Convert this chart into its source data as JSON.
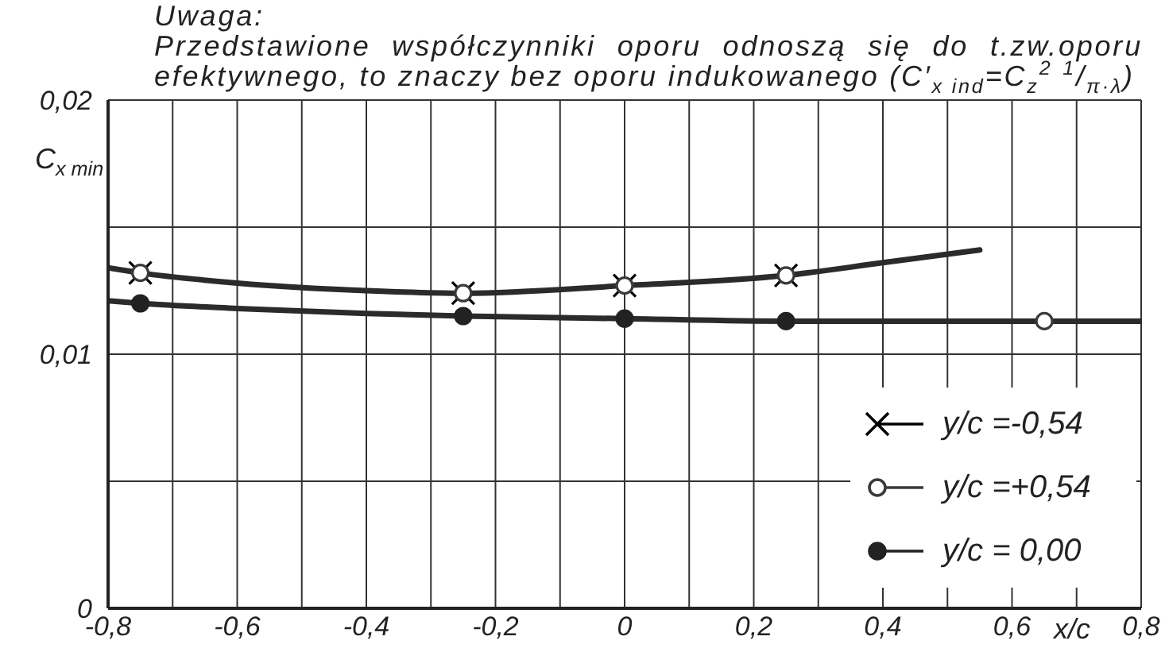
{
  "chart_data": {
    "type": "scatter",
    "annotations": [
      "Uwaga:",
      "Przedstawione współczynniki oporu odnoszą się do t.zw.oporu efektywnego, to znaczy bez oporu indukowanego (C′$_{x ind}$=C$_{z}$$^{2}$ $^{1}$/$_{π·λ}$)"
    ],
    "xlabel": "x/c",
    "ylabel": "C$_{x min}$",
    "xlim": [
      -0.8,
      0.8
    ],
    "ylim": [
      0,
      0.02
    ],
    "xticks": [
      {
        "value": -0.8,
        "label": "-0,8"
      },
      {
        "value": -0.7,
        "label": null
      },
      {
        "value": -0.6,
        "label": "-0,6"
      },
      {
        "value": -0.5,
        "label": null
      },
      {
        "value": -0.4,
        "label": "-0,4"
      },
      {
        "value": -0.3,
        "label": null
      },
      {
        "value": -0.2,
        "label": "-0,2"
      },
      {
        "value": -0.1,
        "label": null
      },
      0,
      {
        "value": 0.1,
        "label": null
      },
      {
        "value": 0.2,
        "label": "0,2"
      },
      {
        "value": 0.3,
        "label": null
      },
      {
        "value": 0.4,
        "label": "0,4"
      },
      {
        "value": 0.5,
        "label": null
      },
      {
        "value": 0.6,
        "label": "0,6"
      },
      {
        "value": 0.7,
        "label": null
      },
      {
        "value": 0.8,
        "label": "0,8"
      }
    ],
    "yticks": [
      0,
      {
        "value": 0.005,
        "label": null
      },
      {
        "value": 0.01,
        "label": "0,01"
      },
      {
        "value": 0.015,
        "label": null
      },
      {
        "value": 0.02,
        "label": "0,02"
      }
    ],
    "grid": true,
    "legend": "bottom right",
    "series": [
      {
        "name": "y/c =-0,54",
        "marker": "cross",
        "color": "#000000",
        "x": [
          -0.75,
          -0.25,
          0,
          0.25
        ],
        "values": [
          0.0132,
          0.0124,
          0.0127,
          0.0131
        ]
      },
      {
        "name": "y/c =+0,54",
        "marker": "circle",
        "color": "#3a3a3a",
        "x": [
          -0.75,
          -0.25,
          0,
          0.25,
          0.65
        ],
        "values": [
          0.0132,
          0.0124,
          0.0127,
          0.0131,
          0.0113
        ]
      },
      {
        "name": "y/c = 0,00",
        "marker": "circle",
        "color": "#222222",
        "x": [
          -0.75,
          -0.25,
          0,
          0.25
        ],
        "values": [
          0.012,
          0.0115,
          0.0114,
          0.0113
        ]
      },
      {
        "type": "line",
        "marker": "none",
        "color": "#2b2b2b",
        "x": [
          -0.8,
          -0.75,
          -0.6,
          -0.4,
          -0.25,
          0,
          0.25,
          0.4,
          0.55
        ],
        "values": [
          0.0134,
          0.0132,
          0.0128,
          0.0125,
          0.0124,
          0.0127,
          0.0131,
          0.0136,
          0.0141
        ]
      },
      {
        "type": "line",
        "marker": "none",
        "color": "#2b2b2b",
        "x": [
          -0.8,
          -0.75,
          -0.6,
          -0.4,
          -0.25,
          0,
          0.25,
          0.65,
          0.8
        ],
        "values": [
          0.0121,
          0.012,
          0.0118,
          0.0116,
          0.0115,
          0.0114,
          0.0113,
          0.0113,
          0.0113
        ]
      }
    ]
  }
}
